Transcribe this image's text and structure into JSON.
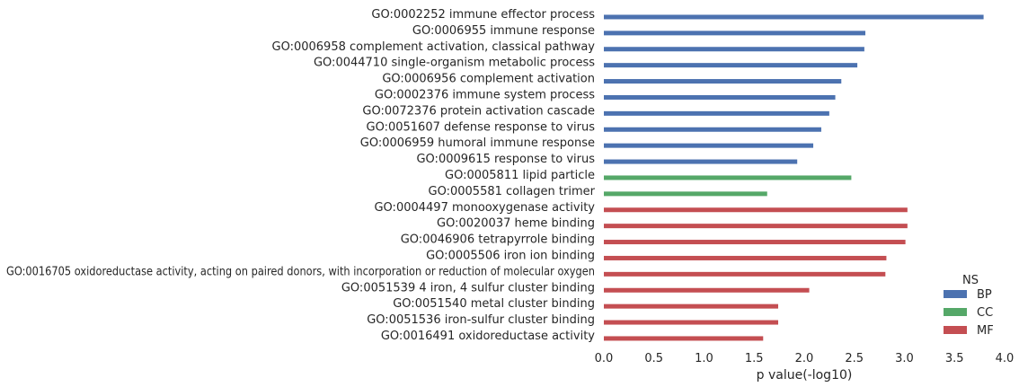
{
  "chart_data": {
    "type": "bar",
    "orientation": "horizontal",
    "xlabel": "p value(-log10)",
    "xlim": [
      0,
      4.0
    ],
    "xticks": [
      "0.0",
      "0.5",
      "1.0",
      "1.5",
      "2.0",
      "2.5",
      "3.0",
      "3.5",
      "4.0"
    ],
    "grid": false,
    "legend": {
      "title": "NS",
      "placement": "bottom-right",
      "entries": [
        {
          "name": "BP",
          "color": "#4c72b0"
        },
        {
          "name": "CC",
          "color": "#55a868"
        },
        {
          "name": "MF",
          "color": "#c44e52"
        }
      ]
    },
    "bars": [
      {
        "label": "GO:0002252 immune effector process",
        "value": 3.79,
        "ns": "BP"
      },
      {
        "label": "GO:0006955 immune response",
        "value": 2.61,
        "ns": "BP"
      },
      {
        "label": "GO:0006958 complement activation, classical pathway",
        "value": 2.6,
        "ns": "BP"
      },
      {
        "label": "GO:0044710 single-organism metabolic process",
        "value": 2.53,
        "ns": "BP"
      },
      {
        "label": "GO:0006956 complement activation",
        "value": 2.37,
        "ns": "BP"
      },
      {
        "label": "GO:0002376 immune system process",
        "value": 2.31,
        "ns": "BP"
      },
      {
        "label": "GO:0072376 protein activation cascade",
        "value": 2.25,
        "ns": "BP"
      },
      {
        "label": "GO:0051607 defense response to virus",
        "value": 2.17,
        "ns": "BP"
      },
      {
        "label": "GO:0006959 humoral immune response",
        "value": 2.09,
        "ns": "BP"
      },
      {
        "label": "GO:0009615 response to virus",
        "value": 1.93,
        "ns": "BP"
      },
      {
        "label": "GO:0005811 lipid particle",
        "value": 2.47,
        "ns": "CC"
      },
      {
        "label": "GO:0005581 collagen trimer",
        "value": 1.63,
        "ns": "CC"
      },
      {
        "label": "GO:0004497 monooxygenase activity",
        "value": 3.03,
        "ns": "MF"
      },
      {
        "label": "GO:0020037 heme binding",
        "value": 3.03,
        "ns": "MF"
      },
      {
        "label": "GO:0046906 tetrapyrrole binding",
        "value": 3.01,
        "ns": "MF"
      },
      {
        "label": "GO:0005506 iron ion binding",
        "value": 2.82,
        "ns": "MF"
      },
      {
        "label": "GO:0016705 oxidoreductase activity, acting on paired donors, with incorporation or reduction of molecular oxygen",
        "value": 2.81,
        "ns": "MF"
      },
      {
        "label": "GO:0051539 4 iron, 4 sulfur cluster binding",
        "value": 2.05,
        "ns": "MF"
      },
      {
        "label": "GO:0051540 metal cluster binding",
        "value": 1.74,
        "ns": "MF"
      },
      {
        "label": "GO:0051536 iron-sulfur cluster binding",
        "value": 1.74,
        "ns": "MF"
      },
      {
        "label": "GO:0016491 oxidoreductase activity",
        "value": 1.59,
        "ns": "MF"
      }
    ]
  }
}
